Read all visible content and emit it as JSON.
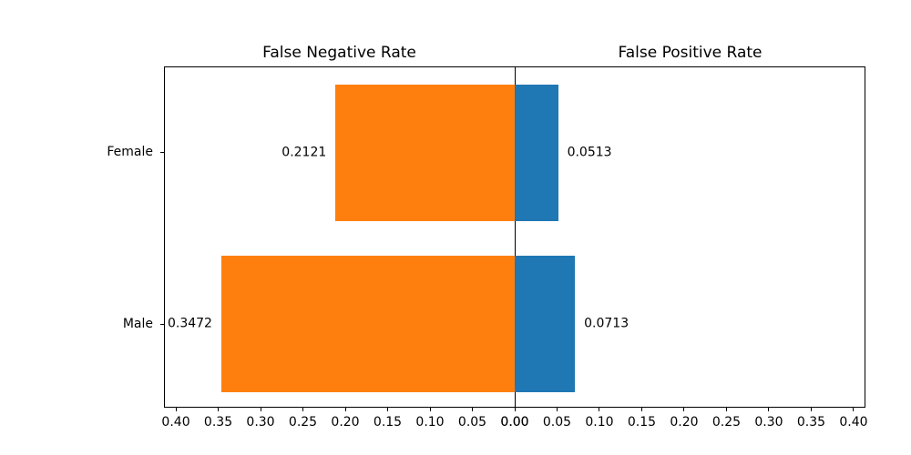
{
  "figure": {
    "background": "#ffffff",
    "text_color": "#000000",
    "axis_color": "#000000"
  },
  "chart_data": {
    "type": "bar",
    "variant": "diverging-horizontal",
    "title": "",
    "categories": [
      "Female",
      "Male"
    ],
    "panels": [
      {
        "title": "False Negative Rate",
        "side": "left",
        "color": "#ff7f0e",
        "values": [
          0.2121,
          0.3472
        ],
        "value_labels": [
          "0.2121",
          "0.3472"
        ]
      },
      {
        "title": "False Positive Rate",
        "side": "right",
        "color": "#1f77b4",
        "values": [
          0.0513,
          0.0713
        ],
        "value_labels": [
          "0.0513",
          "0.0713"
        ]
      }
    ],
    "x_tick_values": [
      0.0,
      0.05,
      0.1,
      0.15,
      0.2,
      0.25,
      0.3,
      0.35,
      0.4
    ],
    "x_tick_labels": [
      "0.00",
      "0.05",
      "0.10",
      "0.15",
      "0.20",
      "0.25",
      "0.30",
      "0.35",
      "0.40"
    ],
    "xlim": [
      0,
      0.414
    ],
    "x_max": 0.414,
    "grid": false,
    "legend": null
  }
}
